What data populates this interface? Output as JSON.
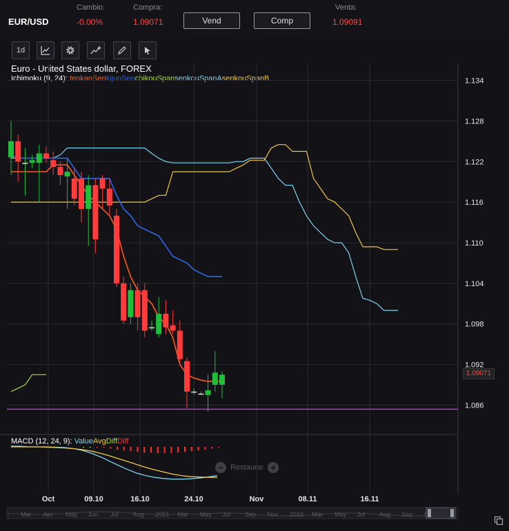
{
  "header": {
    "symbol": "EUR/USD",
    "change_label": "Cambio:",
    "change_value": "-0.00%",
    "buy_label": "Compra:",
    "buy_value": "1.09071",
    "sell_button": "Vend",
    "buy_button": "Comp",
    "sell_label": "Venta:",
    "sell_value": "1.09091"
  },
  "toolbar": {
    "interval_label": "1d",
    "icons": [
      "chart-type-icon",
      "settings-gear-icon",
      "add-indicator-icon",
      "pencil-draw-icon",
      "cursor-arrow-icon"
    ]
  },
  "chart": {
    "title": "Euro - United States dollar, FOREX",
    "indicator_name": "Ichimoku (9, 24):",
    "indicator_series": [
      {
        "name": "tenkanSen",
        "color": "#ff5a1f"
      },
      {
        "name": "kijunSen",
        "color": "#2e5fd6"
      },
      {
        "name": "chikouSpan",
        "color": "#a6e22e"
      },
      {
        "name": "senkouSpanA",
        "color": "#7fd4f0"
      },
      {
        "name": "senkouSpanB",
        "color": "#f0c84a"
      }
    ],
    "macd_name": "MACD (12, 24, 9):",
    "macd_series": [
      {
        "name": "Value",
        "color": "#7fd4f0"
      },
      {
        "name": "Avg",
        "color": "#f0c84a"
      },
      {
        "name": "Diff",
        "color": "#a6e22e"
      },
      {
        "name": "Diff",
        "color": "#ff3030"
      }
    ],
    "current_price": "1.09071",
    "reset_label": "Restaurar",
    "y_ticks": [
      "1.134",
      "1.128",
      "1.122",
      "1.116",
      "1.110",
      "1.104",
      "1.098",
      "1.092",
      "1.086"
    ],
    "x_ticks": [
      "Oct",
      "09.10",
      "16.10",
      "24.10",
      "Nov",
      "08.11",
      "16.11"
    ],
    "navigator_labels": [
      "Mar",
      "Apr",
      "May",
      "Jun",
      "Jul",
      "Aug",
      "2015",
      "Mar",
      "May",
      "Jul",
      "Sep",
      "Nov",
      "2016",
      "Mar",
      "May",
      "Jul",
      "Aug",
      "Sep",
      "Oct"
    ]
  },
  "chart_data": {
    "type": "candlestick",
    "y_range": [
      1.0835,
      1.1365
    ],
    "candles": [
      {
        "o": 1.1226,
        "h": 1.128,
        "l": 1.12,
        "c": 1.125
      },
      {
        "o": 1.125,
        "h": 1.126,
        "l": 1.119,
        "c": 1.122
      },
      {
        "o": 1.1215,
        "h": 1.124,
        "l": 1.117,
        "c": 1.1218
      },
      {
        "o": 1.1218,
        "h": 1.123,
        "l": 1.121,
        "c": 1.1222
      },
      {
        "o": 1.1218,
        "h": 1.1245,
        "l": 1.116,
        "c": 1.1232
      },
      {
        "o": 1.1232,
        "h": 1.1242,
        "l": 1.1218,
        "c": 1.1225
      },
      {
        "o": 1.1222,
        "h": 1.1235,
        "l": 1.12,
        "c": 1.1212
      },
      {
        "o": 1.1212,
        "h": 1.122,
        "l": 1.1185,
        "c": 1.12
      },
      {
        "o": 1.1198,
        "h": 1.1225,
        "l": 1.115,
        "c": 1.1205
      },
      {
        "o": 1.1195,
        "h": 1.121,
        "l": 1.1155,
        "c": 1.1165
      },
      {
        "o": 1.1195,
        "h": 1.1205,
        "l": 1.113,
        "c": 1.115
      },
      {
        "o": 1.115,
        "h": 1.12,
        "l": 1.1095,
        "c": 1.1185
      },
      {
        "o": 1.1185,
        "h": 1.1195,
        "l": 1.1085,
        "c": 1.1105
      },
      {
        "o": 1.1195,
        "h": 1.12,
        "l": 1.115,
        "c": 1.118
      },
      {
        "o": 1.118,
        "h": 1.1195,
        "l": 1.114,
        "c": 1.1155
      },
      {
        "o": 1.114,
        "h": 1.115,
        "l": 1.1035,
        "c": 1.104
      },
      {
        "o": 1.104,
        "h": 1.105,
        "l": 1.098,
        "c": 1.0985
      },
      {
        "o": 1.099,
        "h": 1.104,
        "l": 1.098,
        "c": 1.103
      },
      {
        "o": 1.103,
        "h": 1.104,
        "l": 1.097,
        "c": 1.099
      },
      {
        "o": 1.103,
        "h": 1.104,
        "l": 1.096,
        "c": 1.097
      },
      {
        "o": 1.0975,
        "h": 1.0985,
        "l": 1.097,
        "c": 1.0975
      },
      {
        "o": 1.0965,
        "h": 1.102,
        "l": 1.096,
        "c": 1.0995
      },
      {
        "o": 1.0995,
        "h": 1.1015,
        "l": 1.0965,
        "c": 1.0975
      },
      {
        "o": 1.0978,
        "h": 1.1,
        "l": 1.0965,
        "c": 1.097
      },
      {
        "o": 1.097,
        "h": 1.0985,
        "l": 1.092,
        "c": 1.0928
      },
      {
        "o": 1.0925,
        "h": 1.093,
        "l": 1.0855,
        "c": 1.088
      },
      {
        "o": 1.088,
        "h": 1.0885,
        "l": 1.0875,
        "c": 1.088
      },
      {
        "o": 1.0875,
        "h": 1.088,
        "l": 1.0875,
        "c": 1.0877
      },
      {
        "o": 1.0875,
        "h": 1.0905,
        "l": 1.085,
        "c": 1.0882
      },
      {
        "o": 1.089,
        "h": 1.094,
        "l": 1.088,
        "c": 1.0908
      },
      {
        "o": 1.089,
        "h": 1.091,
        "l": 1.087,
        "c": 1.0905
      }
    ],
    "tenkanSen": [
      1.1205,
      1.1205,
      1.1205,
      1.1205,
      1.1205,
      1.1205,
      1.1215,
      1.1215,
      1.1215,
      1.12,
      1.1185,
      1.117,
      1.116,
      1.115,
      1.114,
      1.112,
      1.108,
      1.105,
      1.103,
      1.102,
      1.101,
      1.099,
      1.098,
      1.096,
      1.092,
      1.0905,
      1.09,
      1.0897,
      1.0895,
      1.0895,
      1.0895
    ],
    "kijunSen": [
      1.123,
      1.1225,
      1.1225,
      1.1225,
      1.1225,
      1.1225,
      1.1225,
      1.1225,
      1.1225,
      1.121,
      1.1195,
      1.1195,
      1.1195,
      1.1195,
      1.1195,
      1.117,
      1.115,
      1.114,
      1.1125,
      1.112,
      1.1115,
      1.111,
      1.1095,
      1.108,
      1.1075,
      1.107,
      1.106,
      1.1055,
      1.105,
      1.105,
      1.105
    ],
    "chikouSpan": [
      1.088,
      1.0885,
      1.089,
      1.0905,
      1.0905,
      1.0905
    ],
    "senkouSpanA": [
      1.1225,
      1.1225,
      1.1225,
      1.1225,
      1.1225,
      1.1225,
      1.1225,
      1.123,
      1.124,
      1.124,
      1.124,
      1.124,
      1.124,
      1.124,
      1.124,
      1.124,
      1.124,
      1.124,
      1.124,
      1.124,
      1.1232,
      1.1225,
      1.122,
      1.1218,
      1.1218,
      1.1218,
      1.1218,
      1.1218,
      1.1218,
      1.1218,
      1.1218,
      1.1218,
      1.122,
      1.122,
      1.1225,
      1.1225,
      1.1225,
      1.121,
      1.1195,
      1.1185,
      1.1185,
      1.116,
      1.114,
      1.1125,
      1.1115,
      1.1105,
      1.11,
      1.11,
      1.1085,
      1.105,
      1.1018,
      1.1015,
      1.101,
      1.1,
      1.1,
      1.1
    ],
    "senkouSpanB": [
      1.116,
      1.116,
      1.116,
      1.116,
      1.116,
      1.116,
      1.116,
      1.116,
      1.116,
      1.116,
      1.116,
      1.116,
      1.116,
      1.116,
      1.116,
      1.116,
      1.116,
      1.116,
      1.116,
      1.116,
      1.1165,
      1.117,
      1.117,
      1.1205,
      1.1205,
      1.1205,
      1.1205,
      1.1205,
      1.1205,
      1.1205,
      1.1205,
      1.1205,
      1.121,
      1.1215,
      1.1222,
      1.1222,
      1.1222,
      1.124,
      1.1245,
      1.1245,
      1.1235,
      1.1235,
      1.1235,
      1.1195,
      1.118,
      1.1165,
      1.116,
      1.115,
      1.114,
      1.1115,
      1.1094,
      1.1094,
      1.1094,
      1.109,
      1.109,
      1.109
    ],
    "support_level": 1.0854,
    "support_color": "#b23ad0",
    "macd": {
      "value": [
        0.02,
        0.02,
        0.0,
        0.0,
        0.0,
        -0.01,
        -0.02,
        -0.05,
        -0.1,
        -0.18,
        -0.28,
        -0.4,
        -0.52,
        -0.63,
        -0.73,
        -0.8,
        -0.85,
        -0.88,
        -0.9,
        -0.9,
        -0.89,
        -0.87,
        -0.84,
        -0.8
      ],
      "avg": [
        0.0,
        0.0,
        0.0,
        0.0,
        -0.01,
        -0.02,
        -0.03,
        -0.05,
        -0.08,
        -0.12,
        -0.18,
        -0.25,
        -0.33,
        -0.41,
        -0.49,
        -0.57,
        -0.64,
        -0.7,
        -0.76,
        -0.8,
        -0.83,
        -0.84,
        -0.85,
        -0.85
      ],
      "diff": [
        0.0,
        0.0,
        -0.01,
        -0.02,
        -0.05,
        -0.08,
        -0.1,
        -0.12,
        -0.14,
        -0.16,
        -0.16,
        -0.17,
        -0.17,
        -0.17,
        -0.16,
        -0.14,
        -0.12,
        -0.1,
        -0.08,
        -0.05,
        -0.02
      ]
    }
  }
}
